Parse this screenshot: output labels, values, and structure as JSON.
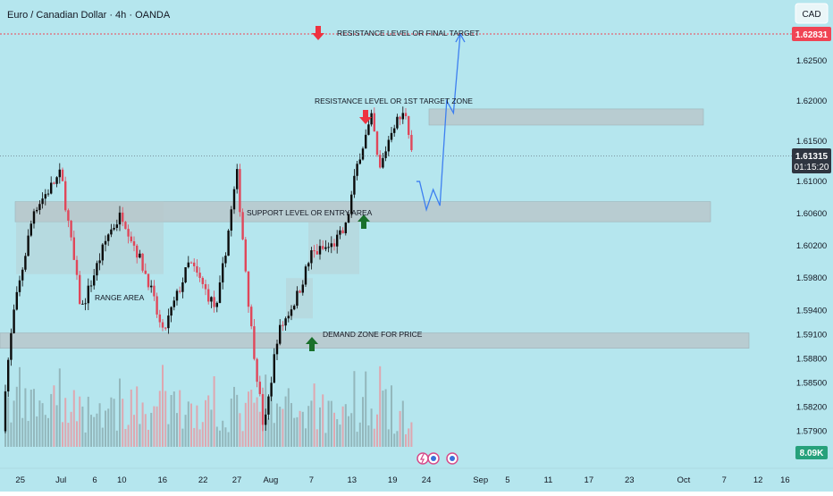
{
  "header": {
    "title": "Euro / Canadian Dollar · 4h · OANDA",
    "currency": "CAD"
  },
  "price_axis": {
    "ticks": [
      "1.62500",
      "1.62000",
      "1.61500",
      "1.61000",
      "1.60600",
      "1.60200",
      "1.59800",
      "1.59400",
      "1.59100",
      "1.58800",
      "1.58500",
      "1.58200",
      "1.57900"
    ],
    "target_tag": "1.62831",
    "current_tag": "1.61315",
    "countdown": "01:15:20",
    "volume_tag": "8.09K"
  },
  "time_axis": {
    "ticks": [
      "25",
      "Jul",
      "6",
      "10",
      "16",
      "22",
      "27",
      "Aug",
      "7",
      "13",
      "19",
      "24",
      "Sep",
      "5",
      "11",
      "17",
      "23",
      "Oct",
      "7",
      "12",
      "16"
    ]
  },
  "annotations": {
    "final_target": "RESISTANCE LEVEL OR FINAL TARGET",
    "first_target": "RESISTANCE LEVEL OR 1ST TARGET ZONE",
    "support": "SUPPORT LEVEL OR ENTRY AREA",
    "range": "RANGE AREA",
    "demand": "DEMAND ZONE FOR PRICE"
  },
  "colors": {
    "background": "#b5e6ee",
    "bull": "#0b0b0b",
    "bear": "#e0475a",
    "zone": "#b8c7cb",
    "projection": "#3d7ff0",
    "arrow_down": "#ee3340",
    "arrow_up": "#19702b",
    "target_tag": "#f04454",
    "current_tag": "#2f3540",
    "volume_tag": "#26a17b"
  },
  "chart_data": {
    "type": "candlestick",
    "symbol": "Euro / Canadian Dollar",
    "timeframe": "4h",
    "close_path": [
      {
        "x": "Jun 22",
        "y": 1.579
      },
      {
        "x": "Jun 24",
        "y": 1.5935
      },
      {
        "x": "Jun 27",
        "y": 1.6065
      },
      {
        "x": "Jul 1",
        "y": 1.611
      },
      {
        "x": "Jul 4",
        "y": 1.594
      },
      {
        "x": "Jul 8",
        "y": 1.6035
      },
      {
        "x": "Jul 10",
        "y": 1.606
      },
      {
        "x": "Jul 14",
        "y": 1.5975
      },
      {
        "x": "Jul 16",
        "y": 1.591
      },
      {
        "x": "Jul 20",
        "y": 1.6
      },
      {
        "x": "Jul 24",
        "y": 1.594
      },
      {
        "x": "Jul 27",
        "y": 1.611
      },
      {
        "x": "Jul 29",
        "y": 1.5925
      },
      {
        "x": "Jul 31",
        "y": 1.579
      },
      {
        "x": "Aug 2",
        "y": 1.591
      },
      {
        "x": "Aug 5",
        "y": 1.596
      },
      {
        "x": "Aug 7",
        "y": 1.601
      },
      {
        "x": "Aug 10",
        "y": 1.602
      },
      {
        "x": "Aug 12",
        "y": 1.604
      },
      {
        "x": "Aug 14",
        "y": 1.613
      },
      {
        "x": "Aug 16",
        "y": 1.618
      },
      {
        "x": "Aug 17",
        "y": 1.611
      },
      {
        "x": "Aug 19",
        "y": 1.617
      },
      {
        "x": "Aug 21",
        "y": 1.6185
      },
      {
        "x": "Aug 22",
        "y": 1.613
      }
    ],
    "projection": [
      {
        "x": "Aug 23",
        "y": 1.61
      },
      {
        "x": "Aug 24",
        "y": 1.6065
      },
      {
        "x": "Aug 25",
        "y": 1.609
      },
      {
        "x": "Aug 26",
        "y": 1.607
      },
      {
        "x": "Aug 27",
        "y": 1.62
      },
      {
        "x": "Aug 28",
        "y": 1.6185
      },
      {
        "x": "Aug 29",
        "y": 1.6283
      }
    ],
    "zones": [
      {
        "label": "RESISTANCE LEVEL OR 1ST TARGET ZONE",
        "from": 1.617,
        "to": 1.619
      },
      {
        "label": "SUPPORT LEVEL OR ENTRY AREA",
        "from": 1.605,
        "to": 1.6075
      },
      {
        "label": "DEMAND ZONE FOR PRICE",
        "from": 1.5893,
        "to": 1.5912
      }
    ],
    "levels": [
      {
        "label": "RESISTANCE LEVEL OR FINAL TARGET",
        "value": 1.62831
      }
    ],
    "current_price": 1.61315,
    "yrange": [
      1.577,
      1.63
    ],
    "legend": "none",
    "grid": false
  }
}
